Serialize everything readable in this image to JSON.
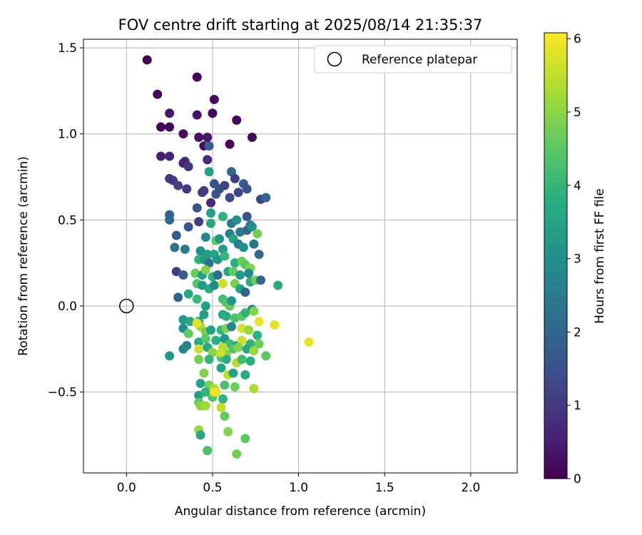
{
  "chart_data": {
    "type": "scatter",
    "title": "FOV centre drift starting at 2025/08/14 21:35:37",
    "xlabel": "Angular distance from reference (arcmin)",
    "ylabel": "Rotation from reference (arcmin)",
    "xlim": [
      -0.25,
      2.27
    ],
    "ylim": [
      -0.97,
      1.55
    ],
    "xticks": [
      "0.0",
      "0.5",
      "1.0",
      "1.5",
      "2.0"
    ],
    "yticks": [
      "−0.5",
      "0.0",
      "0.5",
      "1.0",
      "1.5"
    ],
    "grid": true,
    "colormap": "viridis",
    "colorbar": {
      "label": "Hours from first FF file",
      "range": [
        0,
        6.08
      ],
      "ticks": [
        "0",
        "1",
        "2",
        "3",
        "4",
        "5",
        "6"
      ]
    },
    "legend": {
      "placement": "top-right",
      "entries": [
        {
          "label": "Reference platepar",
          "marker": "open-circle"
        }
      ]
    },
    "reference_point": {
      "x": 0.0,
      "y": 0.0
    },
    "points": [
      [
        0.12,
        1.43,
        0.0
      ],
      [
        0.41,
        1.33,
        0.05
      ],
      [
        0.18,
        1.23,
        0.1
      ],
      [
        0.51,
        1.2,
        0.15
      ],
      [
        0.25,
        1.12,
        0.4
      ],
      [
        0.5,
        1.12,
        0.1
      ],
      [
        0.41,
        1.11,
        0.3
      ],
      [
        0.64,
        1.08,
        0.1
      ],
      [
        0.2,
        1.04,
        0.0
      ],
      [
        0.25,
        1.04,
        0.05
      ],
      [
        0.33,
        1.0,
        0.2
      ],
      [
        0.42,
        0.98,
        0.3
      ],
      [
        0.47,
        0.98,
        0.4
      ],
      [
        0.73,
        0.98,
        0.15
      ],
      [
        0.45,
        0.93,
        0.3
      ],
      [
        0.48,
        0.93,
        1.8
      ],
      [
        0.6,
        0.94,
        0.1
      ],
      [
        0.2,
        0.87,
        0.5
      ],
      [
        0.25,
        0.87,
        0.6
      ],
      [
        0.47,
        0.85,
        0.7
      ],
      [
        0.34,
        0.84,
        0.8
      ],
      [
        0.33,
        0.83,
        0.6
      ],
      [
        0.36,
        0.81,
        0.9
      ],
      [
        0.61,
        0.78,
        2.0
      ],
      [
        0.48,
        0.78,
        3.4
      ],
      [
        0.25,
        0.74,
        1.0
      ],
      [
        0.27,
        0.73,
        0.9
      ],
      [
        0.3,
        0.7,
        1.2
      ],
      [
        0.51,
        0.71,
        1.5
      ],
      [
        0.57,
        0.7,
        1.2
      ],
      [
        0.63,
        0.74,
        1.1
      ],
      [
        0.68,
        0.71,
        1.7
      ],
      [
        0.35,
        0.68,
        1.0
      ],
      [
        0.44,
        0.66,
        1.3
      ],
      [
        0.45,
        0.67,
        1.1
      ],
      [
        0.54,
        0.68,
        1.4
      ],
      [
        0.52,
        0.65,
        1.6
      ],
      [
        0.65,
        0.66,
        1.3
      ],
      [
        0.7,
        0.68,
        1.5
      ],
      [
        0.78,
        0.62,
        1.2
      ],
      [
        0.81,
        0.63,
        2.0
      ],
      [
        0.49,
        0.6,
        0.7
      ],
      [
        0.6,
        0.63,
        1.4
      ],
      [
        0.41,
        0.57,
        1.6
      ],
      [
        0.25,
        0.53,
        1.8
      ],
      [
        0.25,
        0.5,
        2.1
      ],
      [
        0.49,
        0.54,
        3.4
      ],
      [
        0.42,
        0.49,
        1.1
      ],
      [
        0.49,
        0.48,
        3.6
      ],
      [
        0.56,
        0.52,
        3.9
      ],
      [
        0.61,
        0.48,
        2.4
      ],
      [
        0.64,
        0.5,
        3.0
      ],
      [
        0.7,
        0.52,
        1.6
      ],
      [
        0.72,
        0.47,
        2.2
      ],
      [
        0.36,
        0.46,
        1.6
      ],
      [
        0.29,
        0.41,
        1.7
      ],
      [
        0.46,
        0.4,
        2.8
      ],
      [
        0.52,
        0.38,
        4.6
      ],
      [
        0.54,
        0.39,
        3.2
      ],
      [
        0.6,
        0.42,
        2.6
      ],
      [
        0.66,
        0.43,
        2.4
      ],
      [
        0.7,
        0.44,
        2.0
      ],
      [
        0.73,
        0.46,
        3.1
      ],
      [
        0.76,
        0.42,
        4.8
      ],
      [
        0.28,
        0.34,
        2.3
      ],
      [
        0.34,
        0.33,
        2.5
      ],
      [
        0.43,
        0.32,
        3.1
      ],
      [
        0.47,
        0.3,
        3.3
      ],
      [
        0.51,
        0.3,
        3.6
      ],
      [
        0.56,
        0.33,
        3.3
      ],
      [
        0.62,
        0.39,
        3.5
      ],
      [
        0.65,
        0.36,
        2.5
      ],
      [
        0.68,
        0.34,
        3.0
      ],
      [
        0.74,
        0.36,
        2.3
      ],
      [
        0.77,
        0.3,
        2.0
      ],
      [
        0.42,
        0.27,
        3.9
      ],
      [
        0.45,
        0.27,
        3.4
      ],
      [
        0.48,
        0.25,
        2.3
      ],
      [
        0.53,
        0.27,
        3.2
      ],
      [
        0.57,
        0.29,
        4.0
      ],
      [
        0.63,
        0.25,
        3.8
      ],
      [
        0.67,
        0.26,
        4.7
      ],
      [
        0.69,
        0.24,
        4.5
      ],
      [
        0.72,
        0.22,
        4.9
      ],
      [
        0.29,
        0.2,
        1.1
      ],
      [
        0.33,
        0.18,
        1.8
      ],
      [
        0.4,
        0.19,
        4.6
      ],
      [
        0.44,
        0.18,
        3.5
      ],
      [
        0.46,
        0.21,
        4.9
      ],
      [
        0.5,
        0.17,
        3.9
      ],
      [
        0.53,
        0.18,
        2.1
      ],
      [
        0.59,
        0.2,
        3.6
      ],
      [
        0.62,
        0.2,
        4.6
      ],
      [
        0.66,
        0.18,
        3.3
      ],
      [
        0.71,
        0.19,
        2.9
      ],
      [
        0.41,
        0.13,
        4.4
      ],
      [
        0.44,
        0.12,
        3.3
      ],
      [
        0.48,
        0.1,
        3.7
      ],
      [
        0.51,
        0.12,
        2.9
      ],
      [
        0.56,
        0.13,
        5.6
      ],
      [
        0.63,
        0.13,
        4.8
      ],
      [
        0.66,
        0.1,
        3.5
      ],
      [
        0.69,
        0.08,
        2.0
      ],
      [
        0.72,
        0.14,
        3.7
      ],
      [
        0.75,
        0.15,
        4.7
      ],
      [
        0.78,
        0.15,
        2.0
      ],
      [
        0.88,
        0.12,
        3.7
      ],
      [
        0.36,
        0.07,
        3.6
      ],
      [
        0.41,
        0.04,
        4.1
      ],
      [
        0.3,
        0.05,
        1.9
      ],
      [
        0.56,
        0.04,
        4.2
      ],
      [
        0.58,
        0.02,
        4.3
      ],
      [
        0.6,
        0.0,
        4.6
      ],
      [
        0.61,
        0.03,
        3.2
      ],
      [
        0.46,
        0.0,
        3.4
      ],
      [
        0.73,
        -0.02,
        2.8
      ],
      [
        0.74,
        -0.03,
        4.9
      ],
      [
        0.33,
        -0.08,
        3.3
      ],
      [
        0.37,
        -0.09,
        3.6
      ],
      [
        0.42,
        -0.09,
        3.5
      ],
      [
        0.45,
        -0.05,
        3.4
      ],
      [
        0.56,
        -0.05,
        3.6
      ],
      [
        0.58,
        -0.06,
        3.8
      ],
      [
        0.63,
        -0.07,
        4.3
      ],
      [
        0.67,
        -0.06,
        4.5
      ],
      [
        0.69,
        -0.04,
        4.0
      ],
      [
        0.77,
        -0.09,
        5.9
      ],
      [
        0.86,
        -0.11,
        5.8
      ],
      [
        0.33,
        -0.13,
        2.9
      ],
      [
        0.36,
        -0.16,
        4.6
      ],
      [
        0.43,
        -0.12,
        5.2
      ],
      [
        0.46,
        -0.15,
        4.8
      ],
      [
        0.49,
        -0.14,
        3.5
      ],
      [
        0.55,
        -0.14,
        4.0
      ],
      [
        0.58,
        -0.13,
        4.9
      ],
      [
        0.61,
        -0.12,
        2.7
      ],
      [
        0.67,
        -0.13,
        5.7
      ],
      [
        0.71,
        -0.14,
        5.1
      ],
      [
        0.76,
        -0.17,
        3.9
      ],
      [
        1.06,
        -0.21,
        5.9
      ],
      [
        0.42,
        -0.21,
        3.7
      ],
      [
        0.46,
        -0.19,
        4.5
      ],
      [
        0.52,
        -0.2,
        3.8
      ],
      [
        0.57,
        -0.19,
        3.2
      ],
      [
        0.6,
        -0.22,
        4.2
      ],
      [
        0.64,
        -0.23,
        3.5
      ],
      [
        0.67,
        -0.2,
        5.6
      ],
      [
        0.72,
        -0.22,
        3.9
      ],
      [
        0.77,
        -0.22,
        4.7
      ],
      [
        0.42,
        -0.25,
        5.6
      ],
      [
        0.47,
        -0.24,
        3.7
      ],
      [
        0.5,
        -0.27,
        5.0
      ],
      [
        0.56,
        -0.24,
        5.4
      ],
      [
        0.58,
        -0.28,
        5.0
      ],
      [
        0.62,
        -0.25,
        4.4
      ],
      [
        0.65,
        -0.24,
        4.9
      ],
      [
        0.7,
        -0.25,
        3.6
      ],
      [
        0.74,
        -0.26,
        5.1
      ],
      [
        0.35,
        -0.23,
        2.7
      ],
      [
        0.33,
        -0.25,
        2.8
      ],
      [
        0.25,
        -0.29,
        3.2
      ],
      [
        0.42,
        -0.31,
        4.8
      ],
      [
        0.48,
        -0.31,
        4.0
      ],
      [
        0.55,
        -0.3,
        4.4
      ],
      [
        0.58,
        -0.31,
        3.8
      ],
      [
        0.64,
        -0.33,
        5.4
      ],
      [
        0.67,
        -0.31,
        4.2
      ],
      [
        0.72,
        -0.32,
        3.8
      ],
      [
        0.81,
        -0.29,
        4.5
      ],
      [
        0.55,
        -0.36,
        3.5
      ],
      [
        0.59,
        -0.4,
        5.5
      ],
      [
        0.62,
        -0.39,
        3.5
      ],
      [
        0.45,
        -0.39,
        4.9
      ],
      [
        0.69,
        -0.4,
        3.7
      ],
      [
        0.43,
        -0.45,
        3.5
      ],
      [
        0.48,
        -0.46,
        4.8
      ],
      [
        0.51,
        -0.48,
        5.3
      ],
      [
        0.52,
        -0.5,
        5.7
      ],
      [
        0.57,
        -0.46,
        4.3
      ],
      [
        0.63,
        -0.47,
        4.7
      ],
      [
        0.74,
        -0.48,
        5.3
      ],
      [
        0.42,
        -0.52,
        3.4
      ],
      [
        0.46,
        -0.5,
        3.9
      ],
      [
        0.5,
        -0.53,
        4.4
      ],
      [
        0.56,
        -0.54,
        3.9
      ],
      [
        0.42,
        -0.56,
        4.5
      ],
      [
        0.45,
        -0.58,
        4.8
      ],
      [
        0.43,
        -0.58,
        5.0
      ],
      [
        0.46,
        -0.58,
        5.2
      ],
      [
        0.55,
        -0.59,
        5.5
      ],
      [
        0.57,
        -0.64,
        4.6
      ],
      [
        0.42,
        -0.72,
        5.1
      ],
      [
        0.43,
        -0.75,
        3.7
      ],
      [
        0.59,
        -0.73,
        4.9
      ],
      [
        0.69,
        -0.77,
        4.5
      ],
      [
        0.47,
        -0.84,
        4.3
      ],
      [
        0.64,
        -0.86,
        4.7
      ],
      [
        0.41,
        -0.1,
        5.8
      ],
      [
        0.51,
        -0.5,
        5.9
      ],
      [
        0.55,
        -0.27,
        5.6
      ]
    ]
  }
}
